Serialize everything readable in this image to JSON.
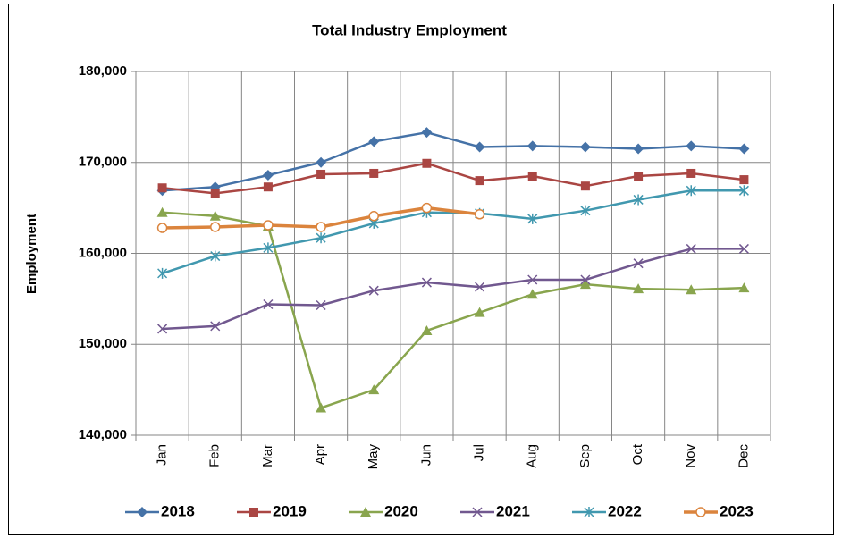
{
  "chart_data": {
    "type": "line",
    "title": "Total Industry Employment",
    "y_label": "Employment",
    "categories": [
      "Jan",
      "Feb",
      "Mar",
      "Apr",
      "May",
      "Jun",
      "Jul",
      "Aug",
      "Sep",
      "Oct",
      "Nov",
      "Dec"
    ],
    "ylim": [
      140000,
      180000
    ],
    "yticks": [
      {
        "value": 140000,
        "label": "140,000"
      },
      {
        "value": 150000,
        "label": "150,000"
      },
      {
        "value": 160000,
        "label": "160,000"
      },
      {
        "value": 170000,
        "label": "170,000"
      },
      {
        "value": 180000,
        "label": "180,000"
      }
    ],
    "grid": true,
    "legend": "bottom",
    "series": [
      {
        "name": "2018",
        "color": "#4572a7",
        "marker": "diamond",
        "values": [
          166900,
          167300,
          168600,
          170000,
          172300,
          173300,
          171700,
          171800,
          171700,
          171500,
          171800,
          171500
        ]
      },
      {
        "name": "2019",
        "color": "#aa4643",
        "marker": "square",
        "values": [
          167200,
          166600,
          167300,
          168700,
          168800,
          169900,
          168000,
          168500,
          167400,
          168500,
          168800,
          168100
        ]
      },
      {
        "name": "2020",
        "color": "#89a54e",
        "marker": "triangle",
        "values": [
          164500,
          164100,
          163000,
          143000,
          145000,
          151500,
          153500,
          155500,
          156600,
          156100,
          156000,
          156200
        ]
      },
      {
        "name": "2021",
        "color": "#71588f",
        "marker": "x",
        "values": [
          151700,
          152000,
          154400,
          154300,
          155900,
          156800,
          156300,
          157100,
          157100,
          158900,
          160500,
          160500
        ]
      },
      {
        "name": "2022",
        "color": "#4198af",
        "marker": "star",
        "values": [
          157800,
          159700,
          160600,
          161700,
          163300,
          164500,
          164400,
          163800,
          164700,
          165900,
          166900,
          166900
        ]
      },
      {
        "name": "2023",
        "color": "#db843d",
        "marker": "circle",
        "values": [
          162800,
          162900,
          163100,
          162900,
          164100,
          165000,
          164300,
          null,
          null,
          null,
          null,
          null
        ]
      }
    ]
  }
}
